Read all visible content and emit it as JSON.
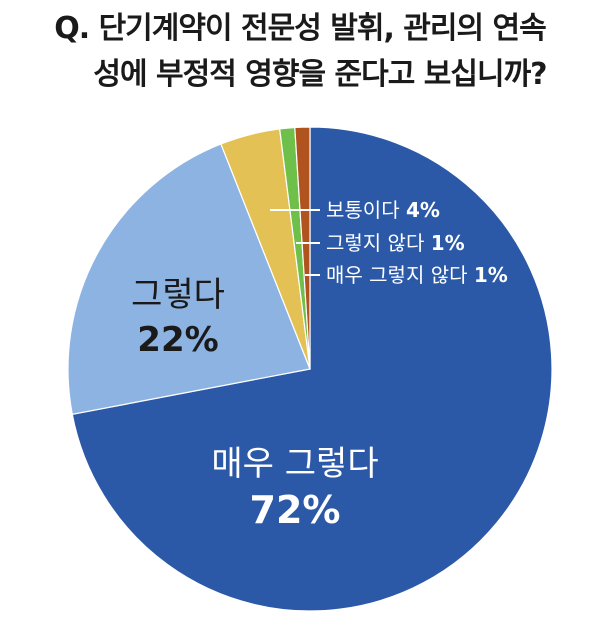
{
  "title": {
    "line1": "Q. 단기계약이 전문성 발휘, 관리의 연속",
    "line2": "성에 부정적 영향을 준다고 보십니까?"
  },
  "chart_data": {
    "type": "pie",
    "title": "Q. 단기계약이 전문성 발휘, 관리의 연속성에 부정적 영향을 준다고 보십니까?",
    "slices": [
      {
        "label": "매우 그렇다",
        "value": 72,
        "display": "72%",
        "color": "#2b59a8"
      },
      {
        "label": "그렇다",
        "value": 22,
        "display": "22%",
        "color": "#8db3e2"
      },
      {
        "label": "보통이다",
        "value": 4,
        "display": "4%",
        "color": "#e3c154"
      },
      {
        "label": "그렇지 않다",
        "value": 1,
        "display": "1%",
        "color": "#6fc04a"
      },
      {
        "label": "매우 그렇지 않다",
        "value": 1,
        "display": "1%",
        "color": "#b0531f"
      }
    ]
  }
}
